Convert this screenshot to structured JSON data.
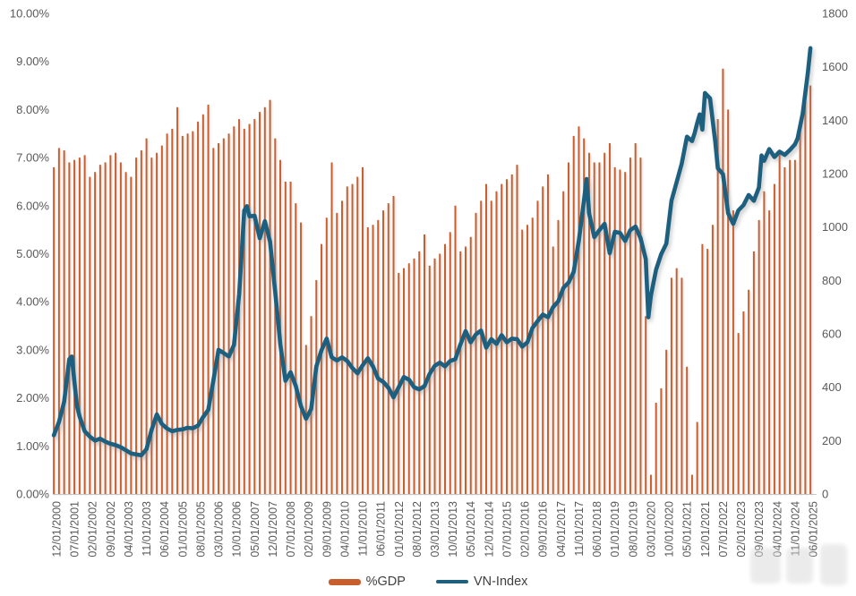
{
  "chart_data": {
    "type": "combo",
    "title": "",
    "grid": "off",
    "legend_position": "bottom-center",
    "x_axis": {
      "tick_interval_months": 7,
      "tick_labels": [
        "12/01/2000",
        "07/01/2001",
        "02/01/2002",
        "09/01/2002",
        "04/01/2003",
        "11/01/2003",
        "06/01/2004",
        "01/01/2005",
        "08/01/2005",
        "03/01/2006",
        "10/01/2006",
        "05/01/2007",
        "12/01/2007",
        "07/01/2008",
        "02/01/2009",
        "09/01/2009",
        "04/01/2010",
        "11/01/2010",
        "06/01/2011",
        "01/01/2012",
        "08/01/2012",
        "03/01/2013",
        "10/01/2013",
        "05/01/2014",
        "12/01/2014",
        "07/01/2015",
        "02/01/2016",
        "09/01/2016",
        "04/01/2017",
        "11/01/2017",
        "06/01/2018",
        "01/01/2019",
        "08/01/2019",
        "03/01/2020",
        "10/01/2020",
        "05/01/2021",
        "12/01/2021",
        "07/01/2022",
        "02/01/2023",
        "09/01/2023",
        "04/01/2024",
        "11/01/2024",
        "06/01/2025"
      ]
    },
    "left_axis": {
      "min": 0,
      "max": 10,
      "step": 1,
      "format": "percent",
      "tick_labels": [
        "0.00%",
        "1.00%",
        "2.00%",
        "3.00%",
        "4.00%",
        "5.00%",
        "6.00%",
        "7.00%",
        "8.00%",
        "9.00%",
        "10.00%"
      ]
    },
    "right_axis": {
      "min": 0,
      "max": 1800,
      "step": 200,
      "tick_labels": [
        "0",
        "200",
        "400",
        "600",
        "800",
        "1000",
        "1200",
        "1400",
        "1600",
        "1800"
      ]
    },
    "series": [
      {
        "name": "%GDP",
        "type": "bar",
        "axis": "left",
        "unit": "percent",
        "color": "#C85E2E",
        "start": "12/2000",
        "step_months": 2,
        "values": [
          6.8,
          7.2,
          7.15,
          6.9,
          6.95,
          7.0,
          7.05,
          6.6,
          6.7,
          6.85,
          6.9,
          7.05,
          7.1,
          6.9,
          6.7,
          6.6,
          7.0,
          7.15,
          7.4,
          7.0,
          7.1,
          7.25,
          7.5,
          7.6,
          8.05,
          7.45,
          7.5,
          7.55,
          7.75,
          7.9,
          8.1,
          7.2,
          7.3,
          7.4,
          7.5,
          7.65,
          7.8,
          7.6,
          7.7,
          7.8,
          7.95,
          8.05,
          8.2,
          7.4,
          6.95,
          6.5,
          6.5,
          6.05,
          5.65,
          3.1,
          3.7,
          4.45,
          5.2,
          5.75,
          6.9,
          5.85,
          6.1,
          6.4,
          6.45,
          6.6,
          6.8,
          5.55,
          5.6,
          5.7,
          5.9,
          6.05,
          6.2,
          4.6,
          4.7,
          4.8,
          4.9,
          5.05,
          5.4,
          4.75,
          4.9,
          5.0,
          5.2,
          5.45,
          6.0,
          5.05,
          5.15,
          5.35,
          5.85,
          6.1,
          6.45,
          6.1,
          6.3,
          6.45,
          6.55,
          6.65,
          6.85,
          5.5,
          5.6,
          5.75,
          6.1,
          6.4,
          6.65,
          5.15,
          5.7,
          6.3,
          6.9,
          7.45,
          7.65,
          7.4,
          7.1,
          6.9,
          6.9,
          7.1,
          7.3,
          6.8,
          6.75,
          6.7,
          7.0,
          7.3,
          7.0,
          3.7,
          0.4,
          1.9,
          2.2,
          3.0,
          4.5,
          4.7,
          4.5,
          2.65,
          0.4,
          1.5,
          5.2,
          5.1,
          5.6,
          7.8,
          8.85,
          8.0,
          5.9,
          3.35,
          3.8,
          4.25,
          5.05,
          5.7,
          6.3,
          5.9,
          6.45,
          7.1,
          6.8,
          6.95,
          6.95,
          7.6,
          8.2,
          8.5
        ]
      },
      {
        "name": "VN-Index",
        "type": "line",
        "axis": "right",
        "color": "#1E5F7E",
        "keypoints": [
          [
            "12/2000",
            220
          ],
          [
            "02/2001",
            270
          ],
          [
            "04/2001",
            345
          ],
          [
            "06/2001",
            505
          ],
          [
            "07/2001",
            515
          ],
          [
            "08/2001",
            420
          ],
          [
            "09/2001",
            330
          ],
          [
            "10/2001",
            290
          ],
          [
            "12/2001",
            235
          ],
          [
            "02/2002",
            215
          ],
          [
            "04/2002",
            200
          ],
          [
            "06/2002",
            207
          ],
          [
            "08/2002",
            196
          ],
          [
            "10/2002",
            188
          ],
          [
            "12/2002",
            183
          ],
          [
            "02/2003",
            175
          ],
          [
            "04/2003",
            164
          ],
          [
            "06/2003",
            152
          ],
          [
            "08/2003",
            148
          ],
          [
            "10/2003",
            145
          ],
          [
            "12/2003",
            168
          ],
          [
            "02/2004",
            240
          ],
          [
            "04/2004",
            298
          ],
          [
            "05/2004",
            280
          ],
          [
            "06/2004",
            262
          ],
          [
            "08/2004",
            245
          ],
          [
            "10/2004",
            235
          ],
          [
            "12/2004",
            240
          ],
          [
            "02/2005",
            242
          ],
          [
            "04/2005",
            248
          ],
          [
            "06/2005",
            246
          ],
          [
            "08/2005",
            256
          ],
          [
            "10/2005",
            288
          ],
          [
            "12/2005",
            315
          ],
          [
            "02/2006",
            425
          ],
          [
            "04/2006",
            540
          ],
          [
            "06/2006",
            528
          ],
          [
            "08/2006",
            515
          ],
          [
            "10/2006",
            558
          ],
          [
            "12/2006",
            748
          ],
          [
            "02/2007",
            1062
          ],
          [
            "03/2007",
            1078
          ],
          [
            "04/2007",
            1040
          ],
          [
            "06/2007",
            1042
          ],
          [
            "08/2007",
            958
          ],
          [
            "10/2007",
            1022
          ],
          [
            "12/2007",
            945
          ],
          [
            "02/2008",
            758
          ],
          [
            "04/2008",
            560
          ],
          [
            "06/2008",
            424
          ],
          [
            "08/2008",
            456
          ],
          [
            "10/2008",
            405
          ],
          [
            "12/2008",
            330
          ],
          [
            "02/2009",
            282
          ],
          [
            "04/2009",
            318
          ],
          [
            "06/2009",
            478
          ],
          [
            "08/2009",
            538
          ],
          [
            "10/2009",
            582
          ],
          [
            "12/2009",
            512
          ],
          [
            "02/2010",
            500
          ],
          [
            "04/2010",
            512
          ],
          [
            "06/2010",
            498
          ],
          [
            "08/2010",
            472
          ],
          [
            "10/2010",
            452
          ],
          [
            "12/2010",
            482
          ],
          [
            "02/2011",
            508
          ],
          [
            "04/2011",
            478
          ],
          [
            "06/2011",
            432
          ],
          [
            "08/2011",
            420
          ],
          [
            "10/2011",
            398
          ],
          [
            "12/2011",
            362
          ],
          [
            "02/2012",
            400
          ],
          [
            "04/2012",
            438
          ],
          [
            "06/2012",
            428
          ],
          [
            "08/2012",
            400
          ],
          [
            "10/2012",
            392
          ],
          [
            "12/2012",
            404
          ],
          [
            "02/2013",
            450
          ],
          [
            "04/2013",
            480
          ],
          [
            "06/2013",
            492
          ],
          [
            "08/2013",
            478
          ],
          [
            "10/2013",
            498
          ],
          [
            "12/2013",
            505
          ],
          [
            "02/2014",
            560
          ],
          [
            "04/2014",
            610
          ],
          [
            "06/2014",
            568
          ],
          [
            "08/2014",
            598
          ],
          [
            "10/2014",
            612
          ],
          [
            "12/2014",
            548
          ],
          [
            "02/2015",
            580
          ],
          [
            "04/2015",
            562
          ],
          [
            "06/2015",
            595
          ],
          [
            "08/2015",
            568
          ],
          [
            "10/2015",
            582
          ],
          [
            "12/2015",
            580
          ],
          [
            "02/2016",
            552
          ],
          [
            "04/2016",
            568
          ],
          [
            "06/2016",
            622
          ],
          [
            "08/2016",
            648
          ],
          [
            "10/2016",
            672
          ],
          [
            "12/2016",
            662
          ],
          [
            "02/2017",
            700
          ],
          [
            "04/2017",
            722
          ],
          [
            "06/2017",
            772
          ],
          [
            "08/2017",
            792
          ],
          [
            "10/2017",
            832
          ],
          [
            "12/2017",
            950
          ],
          [
            "02/2018",
            1100
          ],
          [
            "03/2018",
            1180
          ],
          [
            "04/2018",
            1052
          ],
          [
            "06/2018",
            962
          ],
          [
            "08/2018",
            988
          ],
          [
            "10/2018",
            1012
          ],
          [
            "12/2018",
            902
          ],
          [
            "02/2019",
            982
          ],
          [
            "04/2019",
            978
          ],
          [
            "06/2019",
            948
          ],
          [
            "08/2019",
            988
          ],
          [
            "10/2019",
            1002
          ],
          [
            "12/2019",
            958
          ],
          [
            "02/2020",
            880
          ],
          [
            "03/2020",
            662
          ],
          [
            "04/2020",
            742
          ],
          [
            "06/2020",
            840
          ],
          [
            "08/2020",
            898
          ],
          [
            "10/2020",
            938
          ],
          [
            "12/2020",
            1098
          ],
          [
            "02/2021",
            1168
          ],
          [
            "04/2021",
            1238
          ],
          [
            "06/2021",
            1338
          ],
          [
            "08/2021",
            1322
          ],
          [
            "09/2021",
            1352
          ],
          [
            "10/2021",
            1390
          ],
          [
            "11/2021",
            1422
          ],
          [
            "12/2021",
            1365
          ],
          [
            "01/2022",
            1502
          ],
          [
            "03/2022",
            1482
          ],
          [
            "04/2022",
            1400
          ],
          [
            "05/2022",
            1320
          ],
          [
            "06/2022",
            1220
          ],
          [
            "08/2022",
            1198
          ],
          [
            "10/2022",
            1052
          ],
          [
            "12/2022",
            1012
          ],
          [
            "02/2023",
            1062
          ],
          [
            "04/2023",
            1082
          ],
          [
            "06/2023",
            1120
          ],
          [
            "08/2023",
            1098
          ],
          [
            "10/2023",
            1148
          ],
          [
            "11/2023",
            1268
          ],
          [
            "12/2023",
            1248
          ],
          [
            "02/2024",
            1292
          ],
          [
            "04/2024",
            1262
          ],
          [
            "06/2024",
            1282
          ],
          [
            "08/2024",
            1270
          ],
          [
            "10/2024",
            1288
          ],
          [
            "12/2024",
            1310
          ],
          [
            "01/2025",
            1332
          ],
          [
            "03/2025",
            1425
          ],
          [
            "05/2025",
            1580
          ],
          [
            "06/2025",
            1670
          ]
        ]
      }
    ]
  },
  "legend": {
    "gdp_label": "%GDP",
    "vnindex_label": "VN-Index"
  }
}
